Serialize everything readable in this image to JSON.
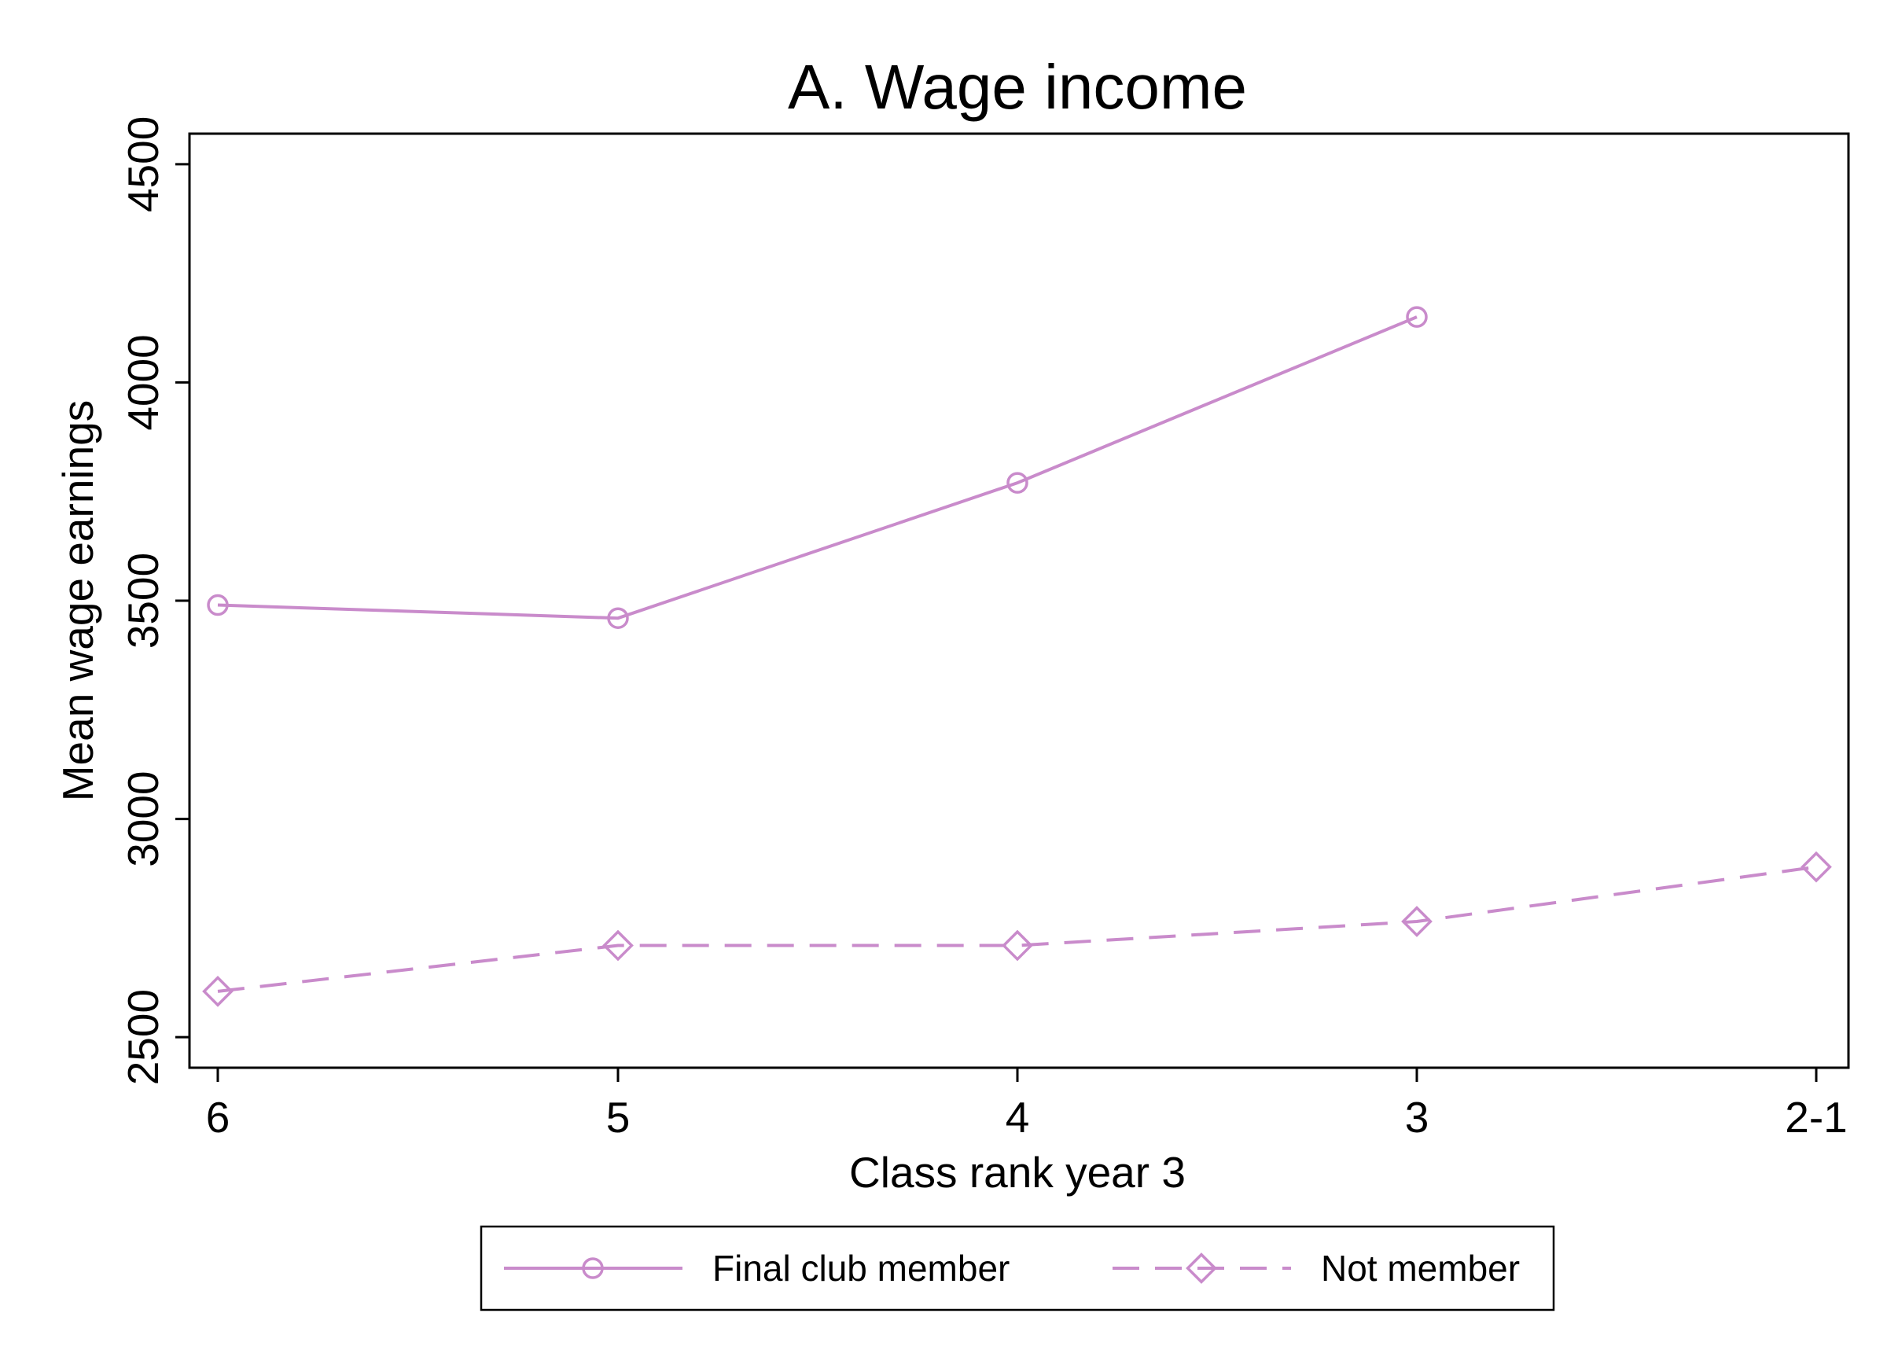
{
  "chart_data": {
    "type": "line",
    "title": "A. Wage income",
    "xlabel": "Class rank year 3",
    "ylabel": "Mean wage earnings",
    "categories": [
      "6",
      "5",
      "4",
      "3",
      "2-1"
    ],
    "yticks": [
      2500,
      3000,
      3500,
      4000,
      4500
    ],
    "ylim": [
      2430,
      4570
    ],
    "grid": false,
    "legend_position": "bottom",
    "series": [
      {
        "name": "Final club member",
        "values": [
          3490,
          3460,
          3770,
          4150,
          null
        ],
        "marker": "circle",
        "line_style": "solid",
        "color": "#c98bcb"
      },
      {
        "name": "Not member",
        "values": [
          2605,
          2710,
          2710,
          2765,
          2890
        ],
        "marker": "diamond",
        "line_style": "dashed",
        "color": "#c98bcb"
      }
    ]
  }
}
